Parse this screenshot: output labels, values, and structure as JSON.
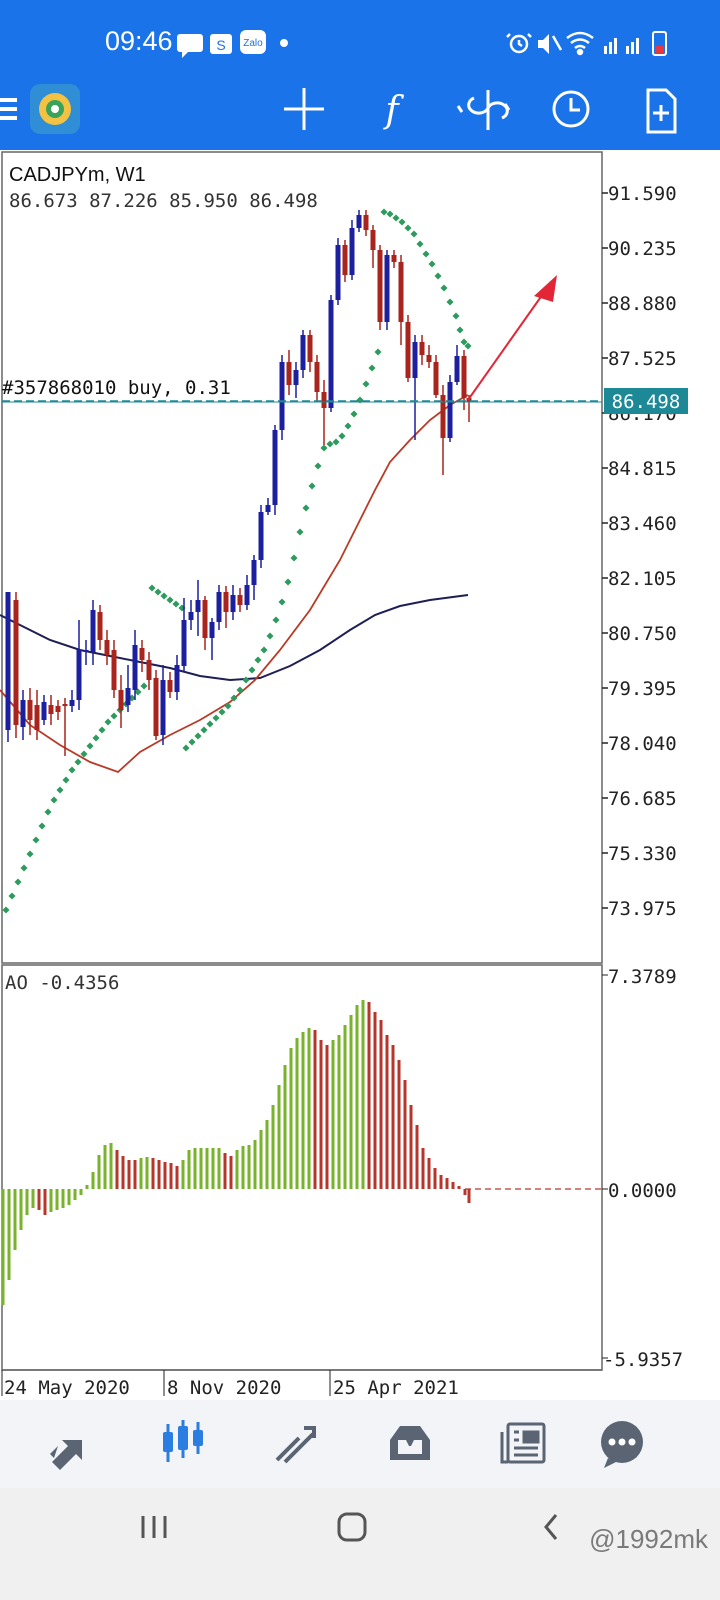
{
  "status_bar": {
    "time": "09:46",
    "notification_icons": [
      "chat-bubble-icon",
      "s-app-icon",
      "zalo-icon",
      "dot-icon"
    ],
    "zalo_label": "Zalo",
    "s_label": "S",
    "system_icons": [
      "alarm-icon",
      "mute-icon",
      "wifi-icon",
      "signal-icon",
      "battery-icon"
    ]
  },
  "toolbar": {
    "icons": [
      "app-logo-icon",
      "crosshair-icon",
      "indicators-icon",
      "trade-icon",
      "timeframe-icon",
      "new-order-icon"
    ],
    "indicators_label": "f"
  },
  "chart": {
    "symbol_label": "CADJPYm, W1",
    "ohlc_label": "86.673 87.226 85.950 86.498",
    "order_label": "#357868010 buy, 0.31",
    "price_badge": "86.498",
    "price_axis": [
      "91.590",
      "90.235",
      "88.880",
      "87.525",
      "86.170",
      "84.815",
      "83.460",
      "82.105",
      "80.750",
      "79.395",
      "78.040",
      "76.685",
      "75.330",
      "73.975"
    ],
    "date_axis": [
      "24 May 2020",
      "8 Nov 2020",
      "25 Apr 2021"
    ],
    "colors": {
      "bull": "#1c1f9e",
      "bear": "#a8241c",
      "psar": "#2e9a5e",
      "ma_fast": "#b83a25",
      "ma_slow": "#1d1f55",
      "price_line": "#1d8896",
      "arrow": "#e32636"
    }
  },
  "indicator": {
    "label": "AO -0.4356",
    "axis": [
      "7.3789",
      "0.0000",
      "-5.9357"
    ],
    "colors": {
      "up": "#79b22b",
      "down": "#b5372c"
    }
  },
  "chart_data": {
    "type": "candlestick",
    "symbol": "CADJPYm",
    "timeframe": "W1",
    "ohlc_last": {
      "open": 86.673,
      "high": 87.226,
      "low": 85.95,
      "close": 86.498
    },
    "ylim": [
      73.2,
      92.2
    ],
    "x": [
      "24 May 2020",
      "8 Nov 2020",
      "25 Apr 2021"
    ],
    "ao_ylim": [
      -5.9357,
      7.3789
    ],
    "ao_last": -0.4356
  },
  "bottom_nav": {
    "items": [
      "quotes-icon",
      "charts-icon",
      "trade-icon",
      "history-icon",
      "news-icon",
      "messages-icon"
    ],
    "active": "charts-icon"
  },
  "system_nav": {
    "items": [
      "recents-icon",
      "home-icon",
      "back-icon"
    ],
    "watermark": "@1992mk"
  }
}
